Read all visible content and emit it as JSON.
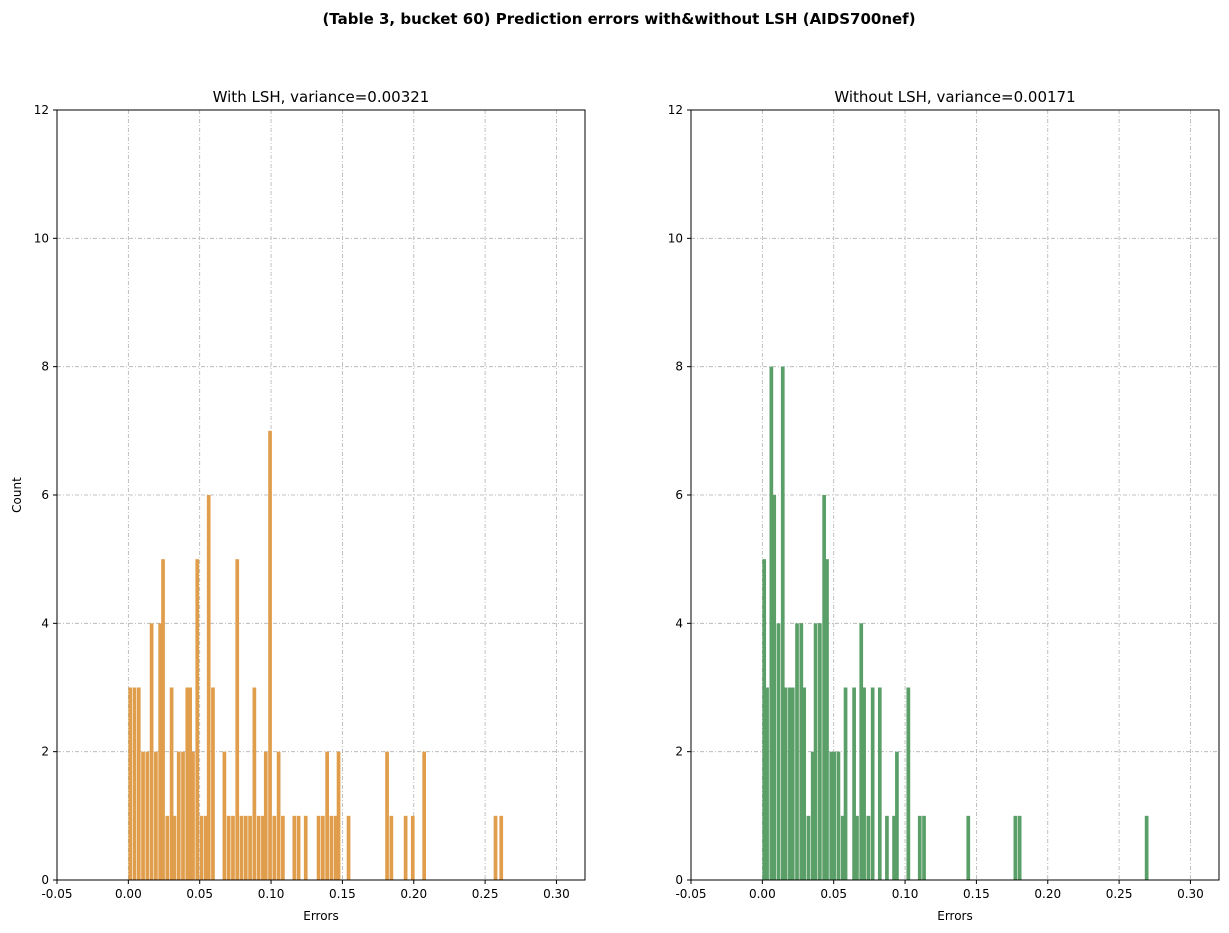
{
  "figure": {
    "suptitle": "(Table 3, bucket 60) Prediction errors with&without LSH (AIDS700nef)"
  },
  "chart_data": [
    {
      "type": "bar",
      "title": "With LSH, variance=0.00321",
      "xlabel": "Errors",
      "ylabel": "Count",
      "xlim": [
        -0.05,
        0.32
      ],
      "ylim": [
        0,
        12
      ],
      "xticks": [
        "-0.05",
        "0.00",
        "0.05",
        "0.10",
        "0.15",
        "0.20",
        "0.25",
        "0.30"
      ],
      "yticks": [
        "0",
        "2",
        "4",
        "6",
        "8",
        "10",
        "12"
      ],
      "grid": true,
      "color": "#e09e4c",
      "bin_width": 0.0026,
      "bins": [
        {
          "x": 0.0,
          "count": 3
        },
        {
          "x": 0.003,
          "count": 3
        },
        {
          "x": 0.006,
          "count": 3
        },
        {
          "x": 0.009,
          "count": 2
        },
        {
          "x": 0.012,
          "count": 2
        },
        {
          "x": 0.015,
          "count": 4
        },
        {
          "x": 0.018,
          "count": 2
        },
        {
          "x": 0.021,
          "count": 4
        },
        {
          "x": 0.023,
          "count": 5
        },
        {
          "x": 0.026,
          "count": 1
        },
        {
          "x": 0.029,
          "count": 3
        },
        {
          "x": 0.031,
          "count": 1
        },
        {
          "x": 0.034,
          "count": 2
        },
        {
          "x": 0.037,
          "count": 2
        },
        {
          "x": 0.04,
          "count": 3
        },
        {
          "x": 0.042,
          "count": 3
        },
        {
          "x": 0.044,
          "count": 2
        },
        {
          "x": 0.047,
          "count": 5
        },
        {
          "x": 0.05,
          "count": 1
        },
        {
          "x": 0.053,
          "count": 1
        },
        {
          "x": 0.055,
          "count": 6
        },
        {
          "x": 0.058,
          "count": 3
        },
        {
          "x": 0.066,
          "count": 2
        },
        {
          "x": 0.069,
          "count": 1
        },
        {
          "x": 0.072,
          "count": 1
        },
        {
          "x": 0.075,
          "count": 5
        },
        {
          "x": 0.078,
          "count": 1
        },
        {
          "x": 0.081,
          "count": 1
        },
        {
          "x": 0.084,
          "count": 1
        },
        {
          "x": 0.087,
          "count": 3
        },
        {
          "x": 0.09,
          "count": 1
        },
        {
          "x": 0.093,
          "count": 1
        },
        {
          "x": 0.095,
          "count": 2
        },
        {
          "x": 0.098,
          "count": 7
        },
        {
          "x": 0.101,
          "count": 1
        },
        {
          "x": 0.104,
          "count": 2
        },
        {
          "x": 0.107,
          "count": 1
        },
        {
          "x": 0.115,
          "count": 1
        },
        {
          "x": 0.118,
          "count": 1
        },
        {
          "x": 0.123,
          "count": 1
        },
        {
          "x": 0.132,
          "count": 1
        },
        {
          "x": 0.135,
          "count": 1
        },
        {
          "x": 0.138,
          "count": 2
        },
        {
          "x": 0.141,
          "count": 1
        },
        {
          "x": 0.144,
          "count": 1
        },
        {
          "x": 0.146,
          "count": 2
        },
        {
          "x": 0.153,
          "count": 1
        },
        {
          "x": 0.18,
          "count": 2
        },
        {
          "x": 0.183,
          "count": 1
        },
        {
          "x": 0.193,
          "count": 1
        },
        {
          "x": 0.198,
          "count": 1
        },
        {
          "x": 0.206,
          "count": 2
        },
        {
          "x": 0.256,
          "count": 1
        },
        {
          "x": 0.26,
          "count": 1
        }
      ]
    },
    {
      "type": "bar",
      "title": "Without LSH, variance=0.00171",
      "xlabel": "Errors",
      "ylabel": "",
      "xlim": [
        -0.05,
        0.32
      ],
      "ylim": [
        0,
        12
      ],
      "xticks": [
        "-0.05",
        "0.00",
        "0.05",
        "0.10",
        "0.15",
        "0.20",
        "0.25",
        "0.30"
      ],
      "yticks": [
        "0",
        "2",
        "4",
        "6",
        "8",
        "10",
        "12"
      ],
      "grid": true,
      "color": "#5b9f68",
      "bin_width": 0.0026,
      "bins": [
        {
          "x": 0.0,
          "count": 5
        },
        {
          "x": 0.002,
          "count": 3
        },
        {
          "x": 0.005,
          "count": 8
        },
        {
          "x": 0.007,
          "count": 6
        },
        {
          "x": 0.01,
          "count": 4
        },
        {
          "x": 0.013,
          "count": 8
        },
        {
          "x": 0.015,
          "count": 3
        },
        {
          "x": 0.018,
          "count": 3
        },
        {
          "x": 0.02,
          "count": 3
        },
        {
          "x": 0.023,
          "count": 4
        },
        {
          "x": 0.026,
          "count": 4
        },
        {
          "x": 0.028,
          "count": 3
        },
        {
          "x": 0.031,
          "count": 1
        },
        {
          "x": 0.034,
          "count": 2
        },
        {
          "x": 0.036,
          "count": 4
        },
        {
          "x": 0.039,
          "count": 4
        },
        {
          "x": 0.042,
          "count": 6
        },
        {
          "x": 0.044,
          "count": 5
        },
        {
          "x": 0.047,
          "count": 2
        },
        {
          "x": 0.049,
          "count": 2
        },
        {
          "x": 0.052,
          "count": 2
        },
        {
          "x": 0.055,
          "count": 1
        },
        {
          "x": 0.057,
          "count": 3
        },
        {
          "x": 0.063,
          "count": 3
        },
        {
          "x": 0.065,
          "count": 1
        },
        {
          "x": 0.068,
          "count": 4
        },
        {
          "x": 0.07,
          "count": 3
        },
        {
          "x": 0.073,
          "count": 1
        },
        {
          "x": 0.076,
          "count": 3
        },
        {
          "x": 0.081,
          "count": 3
        },
        {
          "x": 0.086,
          "count": 1
        },
        {
          "x": 0.091,
          "count": 1
        },
        {
          "x": 0.093,
          "count": 2
        },
        {
          "x": 0.101,
          "count": 3
        },
        {
          "x": 0.109,
          "count": 1
        },
        {
          "x": 0.112,
          "count": 1
        },
        {
          "x": 0.143,
          "count": 1
        },
        {
          "x": 0.176,
          "count": 1
        },
        {
          "x": 0.179,
          "count": 1
        },
        {
          "x": 0.268,
          "count": 1
        }
      ]
    }
  ]
}
